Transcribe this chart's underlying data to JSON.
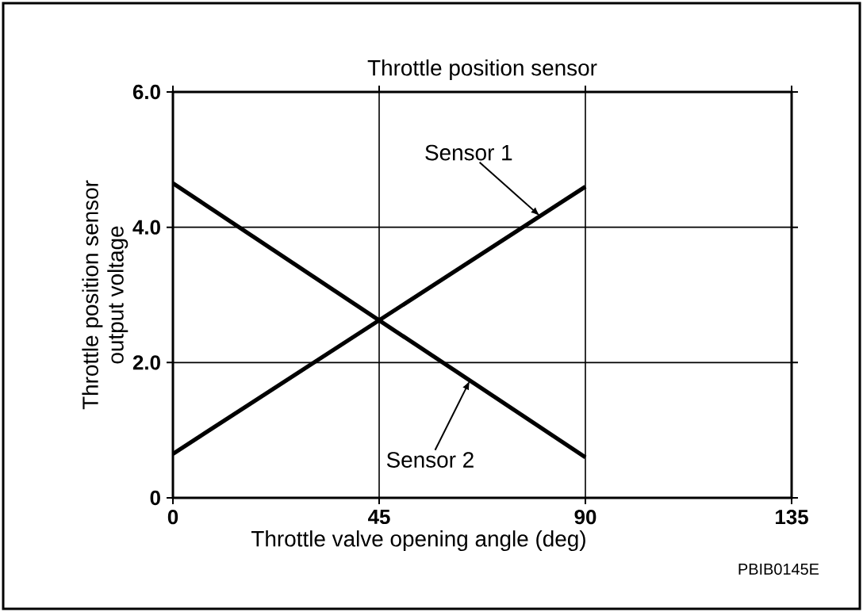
{
  "chart_data": {
    "type": "line",
    "title": "Throttle position sensor",
    "xlabel": "Throttle valve opening angle (deg)",
    "ylabel": "Throttle position sensor output voltage",
    "x": [
      0,
      90
    ],
    "series": [
      {
        "name": "Sensor 1",
        "color": "#000000",
        "values": [
          0.65,
          4.6
        ]
      },
      {
        "name": "Sensor 2",
        "color": "#000000",
        "values": [
          4.65,
          0.6
        ]
      }
    ],
    "xlim": [
      0,
      135
    ],
    "ylim": [
      0,
      6
    ],
    "xticks": [
      0,
      45,
      90,
      135
    ],
    "yticks": [
      {
        "value": 0,
        "label": "0"
      },
      {
        "value": 2,
        "label": "2.0"
      },
      {
        "value": 4,
        "label": "4.0"
      },
      {
        "value": 6,
        "label": "6.0"
      }
    ],
    "grid": true,
    "legend": false,
    "marker": "none",
    "line_style": "solid",
    "annotations": [
      "PBIB0145E"
    ]
  }
}
